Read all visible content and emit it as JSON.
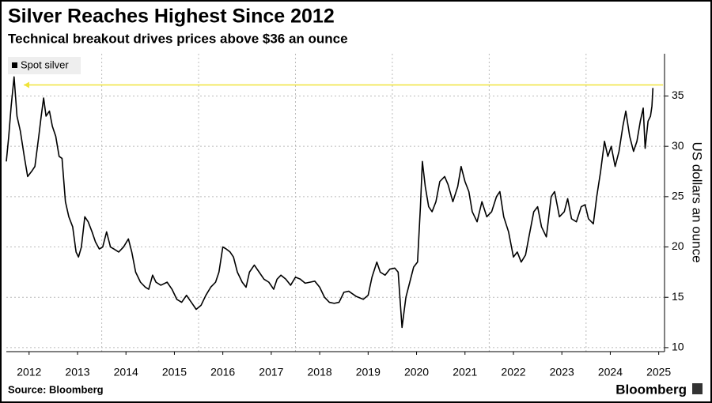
{
  "chart_data": {
    "type": "line",
    "title": "Silver Reaches Highest Since 2012",
    "subtitle": "Technical breakout drives prices above $36 an ounce",
    "y_label": "US dollars an ounce",
    "source": "Source: Bloomberg",
    "logo": "Bloomberg",
    "xlim": [
      2012.03,
      2025.62
    ],
    "xticks": [
      {
        "value": 2012.5,
        "label": "2012"
      },
      {
        "value": 2013.5,
        "label": "2013"
      },
      {
        "value": 2014.5,
        "label": "2014"
      },
      {
        "value": 2015.5,
        "label": "2015"
      },
      {
        "value": 2016.5,
        "label": "2016"
      },
      {
        "value": 2017.5,
        "label": "2017"
      },
      {
        "value": 2018.5,
        "label": "2018"
      },
      {
        "value": 2019.5,
        "label": "2019"
      },
      {
        "value": 2020.5,
        "label": "2020"
      },
      {
        "value": 2021.5,
        "label": "2021"
      },
      {
        "value": 2022.5,
        "label": "2022"
      },
      {
        "value": 2023.5,
        "label": "2023"
      },
      {
        "value": 2024.5,
        "label": "2024"
      },
      {
        "value": 2025.5,
        "label": "2025"
      }
    ],
    "xgrid": [
      2014,
      2016,
      2018,
      2020,
      2022,
      2024
    ],
    "ylim": [
      9.6,
      39.2
    ],
    "yticks": [
      10,
      15,
      20,
      25,
      30,
      35
    ],
    "grid": true,
    "legend": "top-left",
    "reference_line": {
      "y": 36.1,
      "x": [
        2012.39,
        2025.59
      ],
      "color": "#f0e33a"
    },
    "series": [
      {
        "name": "Spot silver",
        "color": "#000000",
        "x": [
          2012.03,
          2012.08,
          2012.13,
          2012.19,
          2012.25,
          2012.32,
          2012.4,
          2012.47,
          2012.55,
          2012.62,
          2012.7,
          2012.75,
          2012.8,
          2012.85,
          2012.92,
          2012.98,
          2013.05,
          2013.12,
          2013.18,
          2013.25,
          2013.32,
          2013.4,
          2013.47,
          2013.52,
          2013.58,
          2013.65,
          2013.72,
          2013.8,
          2013.87,
          2013.95,
          2014.02,
          2014.1,
          2014.18,
          2014.25,
          2014.35,
          2014.45,
          2014.55,
          2014.62,
          2014.7,
          2014.8,
          2014.9,
          2014.97,
          2015.05,
          2015.12,
          2015.22,
          2015.35,
          2015.45,
          2015.55,
          2015.65,
          2015.75,
          2015.85,
          2015.95,
          2016.05,
          2016.15,
          2016.25,
          2016.35,
          2016.42,
          2016.5,
          2016.57,
          2016.65,
          2016.72,
          2016.8,
          2016.9,
          2016.98,
          2017.05,
          2017.15,
          2017.25,
          2017.35,
          2017.45,
          2017.55,
          2017.62,
          2017.7,
          2017.8,
          2017.9,
          2018.0,
          2018.1,
          2018.2,
          2018.3,
          2018.4,
          2018.5,
          2018.6,
          2018.7,
          2018.8,
          2018.9,
          2019.0,
          2019.1,
          2019.25,
          2019.4,
          2019.5,
          2019.58,
          2019.68,
          2019.75,
          2019.85,
          2019.95,
          2020.05,
          2020.12,
          2020.2,
          2020.28,
          2020.36,
          2020.44,
          2020.52,
          2020.58,
          2020.62,
          2020.68,
          2020.75,
          2020.82,
          2020.9,
          2020.98,
          2021.08,
          2021.15,
          2021.25,
          2021.35,
          2021.42,
          2021.5,
          2021.58,
          2021.65,
          2021.75,
          2021.85,
          2021.95,
          2022.05,
          2022.15,
          2022.22,
          2022.3,
          2022.4,
          2022.5,
          2022.58,
          2022.66,
          2022.75,
          2022.82,
          2022.92,
          2023.0,
          2023.08,
          2023.18,
          2023.28,
          2023.35,
          2023.45,
          2023.55,
          2023.62,
          2023.7,
          2023.8,
          2023.9,
          2023.98,
          2024.05,
          2024.15,
          2024.22,
          2024.3,
          2024.38,
          2024.45,
          2024.52,
          2024.6,
          2024.68,
          2024.76,
          2024.82,
          2024.9,
          2024.98,
          2025.05,
          2025.12,
          2025.18,
          2025.22,
          2025.28,
          2025.33,
          2025.36,
          2025.38
        ],
        "values": [
          28.5,
          31,
          34,
          36.9,
          33,
          31.5,
          29,
          27,
          27.5,
          28,
          31,
          33,
          34.8,
          33,
          33.5,
          32,
          31,
          29,
          28.8,
          24.5,
          23,
          22,
          19.5,
          19,
          20,
          23,
          22.5,
          21.5,
          20.5,
          19.8,
          20,
          21.5,
          20,
          19.8,
          19.5,
          20,
          20.8,
          19.5,
          17.5,
          16.5,
          16,
          15.8,
          17.2,
          16.5,
          16.2,
          16.5,
          15.8,
          14.8,
          14.5,
          15.2,
          14.5,
          13.8,
          14.2,
          15.2,
          16,
          16.5,
          17.5,
          20,
          19.8,
          19.5,
          19,
          17.5,
          16.5,
          16,
          17.5,
          18.2,
          17.5,
          16.8,
          16.5,
          15.8,
          16.8,
          17.2,
          16.8,
          16.2,
          17,
          16.8,
          16.4,
          16.5,
          16.6,
          16,
          15,
          14.5,
          14.4,
          14.5,
          15.5,
          15.6,
          15.1,
          14.8,
          15.2,
          17,
          18.5,
          17.5,
          17.2,
          17.8,
          17.9,
          17.5,
          12,
          15,
          16.5,
          18,
          18.5,
          24,
          28.5,
          26,
          24,
          23.5,
          24.5,
          26.5,
          27,
          26.2,
          24.5,
          26,
          28,
          26.5,
          25.5,
          23.5,
          22.5,
          24.5,
          23,
          23.5,
          25,
          25.5,
          23,
          21.5,
          19,
          19.5,
          18.5,
          19.2,
          21,
          23.5,
          24,
          22,
          21,
          25,
          25.5,
          23,
          23.5,
          24.8,
          22.8,
          22.5,
          24,
          24.2,
          22.8,
          22.3,
          25,
          27.5,
          30.5,
          29,
          30,
          28,
          29.5,
          32,
          33.5,
          31,
          29.5,
          30.5,
          32.5,
          33.8,
          29.8,
          32.5,
          33,
          34,
          35.8
        ]
      }
    ]
  }
}
